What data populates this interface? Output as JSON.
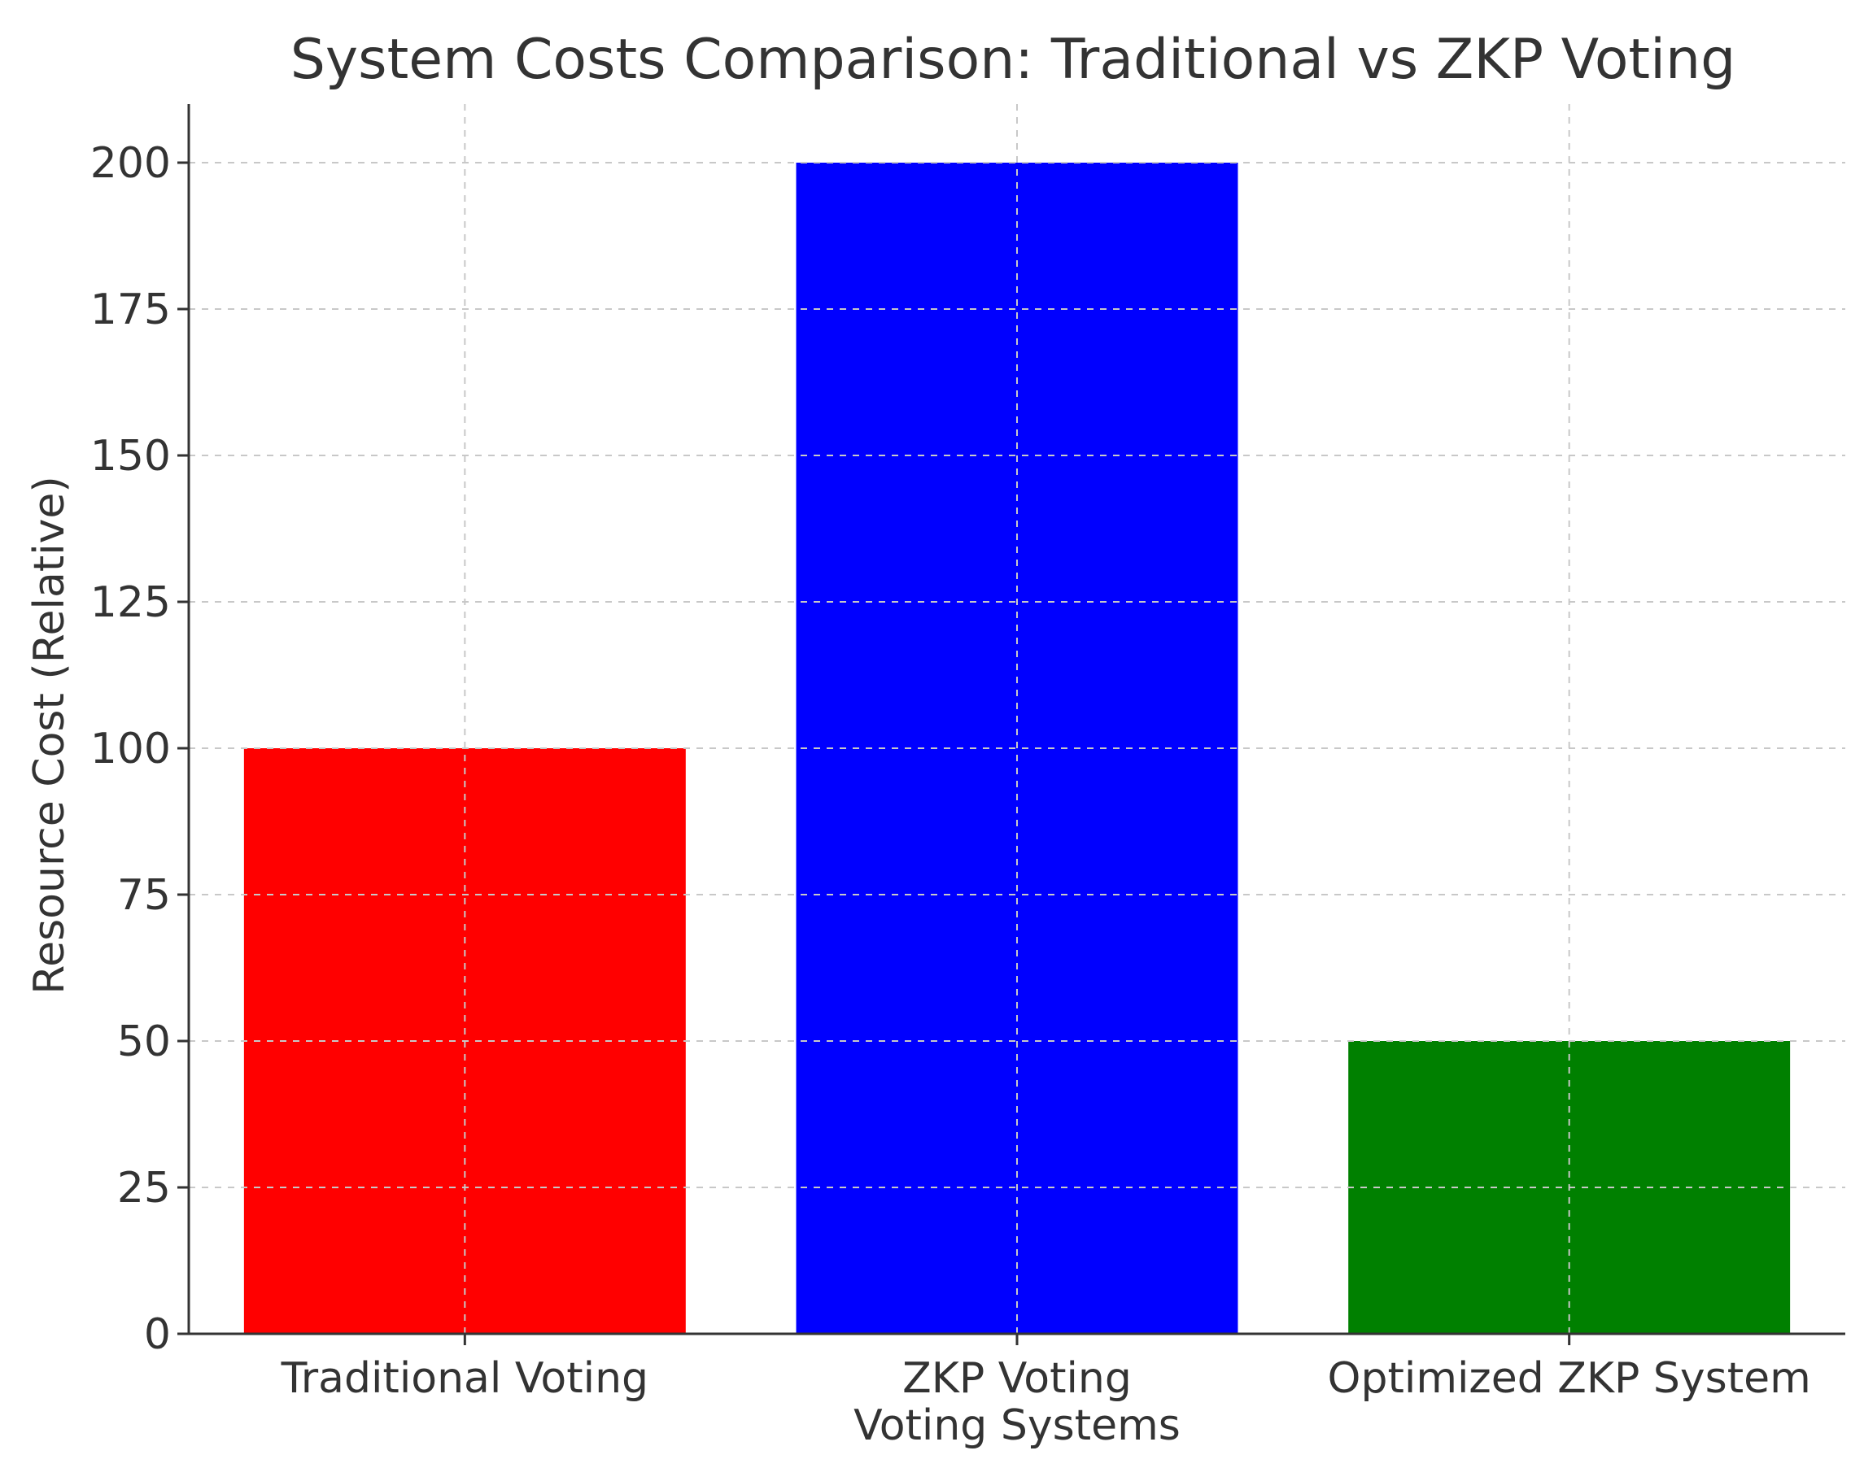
{
  "chart_data": {
    "type": "bar",
    "title": "System Costs Comparison: Traditional vs ZKP Voting",
    "xlabel": "Voting Systems",
    "ylabel": "Resource Cost (Relative)",
    "categories": [
      "Traditional Voting",
      "ZKP Voting",
      "Optimized ZKP System"
    ],
    "values": [
      100,
      200,
      50
    ],
    "bar_colors": [
      "#ff0000",
      "#0000ff",
      "#008000"
    ],
    "ylim": [
      0,
      210
    ],
    "yticks": [
      0,
      25,
      50,
      75,
      100,
      125,
      150,
      175,
      200
    ],
    "grid": true
  }
}
